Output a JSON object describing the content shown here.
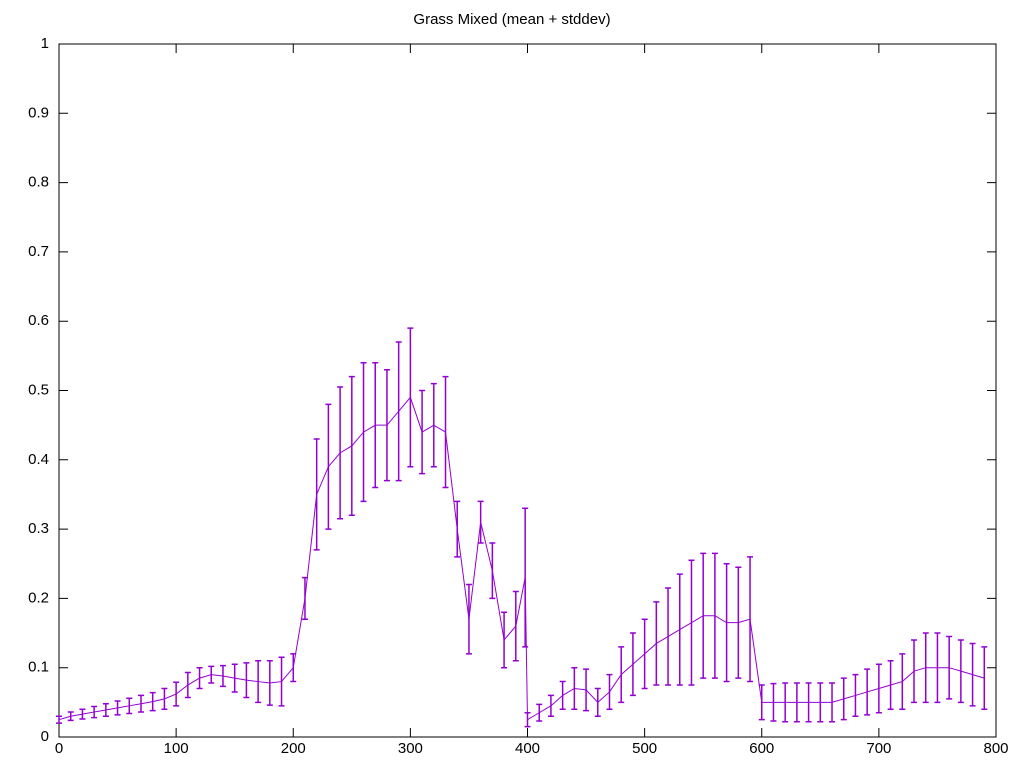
{
  "chart_data": {
    "type": "errorbar",
    "title": "Grass Mixed (mean + stddev)",
    "color": "#9400d3",
    "x": [
      0,
      10,
      20,
      30,
      40,
      50,
      60,
      70,
      80,
      90,
      100,
      110,
      120,
      130,
      140,
      150,
      160,
      170,
      180,
      190,
      200,
      210,
      220,
      230,
      240,
      250,
      260,
      270,
      280,
      290,
      300,
      310,
      320,
      330,
      340,
      350,
      360,
      370,
      380,
      390,
      398,
      400,
      410,
      420,
      430,
      440,
      450,
      460,
      470,
      480,
      490,
      500,
      510,
      520,
      530,
      540,
      550,
      560,
      570,
      580,
      590,
      600,
      610,
      620,
      630,
      640,
      650,
      660,
      670,
      680,
      690,
      700,
      710,
      720,
      730,
      740,
      750,
      760,
      770,
      780,
      790
    ],
    "values": [
      0.025,
      0.03,
      0.033,
      0.036,
      0.039,
      0.042,
      0.045,
      0.048,
      0.051,
      0.055,
      0.062,
      0.075,
      0.085,
      0.09,
      0.088,
      0.085,
      0.082,
      0.08,
      0.078,
      0.08,
      0.1,
      0.2,
      0.35,
      0.39,
      0.41,
      0.42,
      0.44,
      0.45,
      0.45,
      0.47,
      0.49,
      0.44,
      0.45,
      0.44,
      0.3,
      0.17,
      0.31,
      0.24,
      0.14,
      0.16,
      0.23,
      0.025,
      0.035,
      0.045,
      0.06,
      0.07,
      0.068,
      0.05,
      0.065,
      0.09,
      0.105,
      0.12,
      0.135,
      0.145,
      0.155,
      0.165,
      0.175,
      0.175,
      0.165,
      0.165,
      0.17,
      0.05,
      0.05,
      0.05,
      0.05,
      0.05,
      0.05,
      0.05,
      0.055,
      0.06,
      0.065,
      0.07,
      0.075,
      0.08,
      0.095,
      0.1,
      0.1,
      0.1,
      0.095,
      0.09,
      0.085
    ],
    "errors": [
      0.005,
      0.006,
      0.007,
      0.008,
      0.009,
      0.01,
      0.011,
      0.012,
      0.013,
      0.015,
      0.017,
      0.018,
      0.015,
      0.012,
      0.015,
      0.02,
      0.025,
      0.03,
      0.032,
      0.035,
      0.02,
      0.03,
      0.08,
      0.09,
      0.095,
      0.1,
      0.1,
      0.09,
      0.08,
      0.1,
      0.1,
      0.06,
      0.06,
      0.08,
      0.04,
      0.05,
      0.03,
      0.04,
      0.04,
      0.05,
      0.1,
      0.01,
      0.012,
      0.015,
      0.02,
      0.03,
      0.03,
      0.02,
      0.025,
      0.04,
      0.045,
      0.05,
      0.06,
      0.07,
      0.08,
      0.09,
      0.09,
      0.09,
      0.085,
      0.08,
      0.09,
      0.025,
      0.027,
      0.028,
      0.028,
      0.028,
      0.028,
      0.028,
      0.03,
      0.03,
      0.033,
      0.035,
      0.035,
      0.04,
      0.045,
      0.05,
      0.05,
      0.045,
      0.045,
      0.045,
      0.045
    ],
    "xlim": [
      0,
      800
    ],
    "xticks": [
      0,
      100,
      200,
      300,
      400,
      500,
      600,
      700,
      800
    ],
    "ylim": [
      0,
      1
    ],
    "yticks": [
      0,
      0.1,
      0.2,
      0.3,
      0.4,
      0.5,
      0.6,
      0.7,
      0.8,
      0.9,
      1
    ]
  }
}
